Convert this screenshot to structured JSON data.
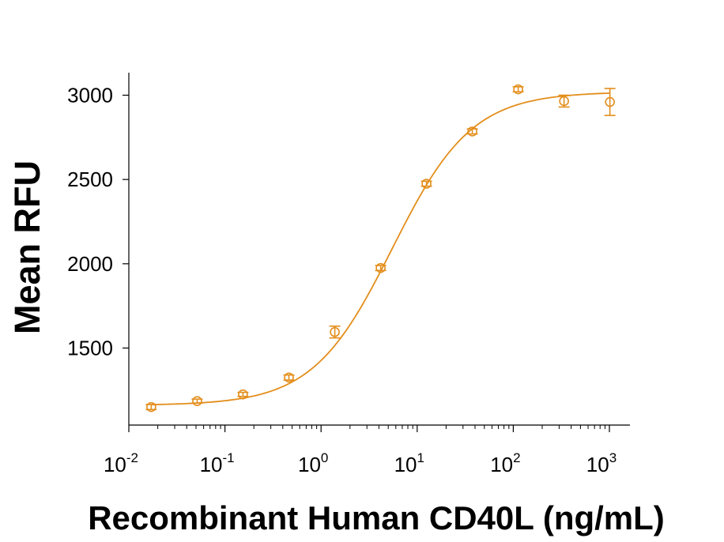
{
  "chart_data": {
    "type": "scatter",
    "xlabel": "Recombinant Human CD40L (ng/mL)",
    "ylabel": "Mean RFU",
    "x_scale": "log",
    "xlim": [
      0.01,
      1000
    ],
    "ylim": [
      1100,
      3150
    ],
    "x_ticks": [
      {
        "base": "10",
        "exp": "-2",
        "value": 0.01
      },
      {
        "base": "10",
        "exp": "-1",
        "value": 0.1
      },
      {
        "base": "10",
        "exp": "0",
        "value": 1
      },
      {
        "base": "10",
        "exp": "1",
        "value": 10
      },
      {
        "base": "10",
        "exp": "2",
        "value": 100
      },
      {
        "base": "10",
        "exp": "3",
        "value": 1000
      }
    ],
    "y_ticks": [
      {
        "label": "1500",
        "value": 1500
      },
      {
        "label": "2000",
        "value": 2000
      },
      {
        "label": "2500",
        "value": 2500
      },
      {
        "label": "3000",
        "value": 3000
      }
    ],
    "grid": false,
    "color": "#E38E1C",
    "series": [
      {
        "points": [
          {
            "x": 0.0171,
            "y": 1150,
            "err": 15
          },
          {
            "x": 0.0514,
            "y": 1185,
            "err": 12
          },
          {
            "x": 0.154,
            "y": 1225,
            "err": 12
          },
          {
            "x": 0.463,
            "y": 1325,
            "err": 15
          },
          {
            "x": 1.39,
            "y": 1595,
            "err": 35
          },
          {
            "x": 4.17,
            "y": 1975,
            "err": 15
          },
          {
            "x": 12.5,
            "y": 2475,
            "err": 15
          },
          {
            "x": 37.5,
            "y": 2785,
            "err": 15
          },
          {
            "x": 112.5,
            "y": 3035,
            "err": 15
          },
          {
            "x": 337.5,
            "y": 2965,
            "err": 35
          },
          {
            "x": 1012.5,
            "y": 2960,
            "err": 80
          }
        ],
        "fit": {
          "bottom": 1160,
          "top": 3020,
          "ec50": 5.5,
          "hill": 1.05
        }
      }
    ]
  }
}
